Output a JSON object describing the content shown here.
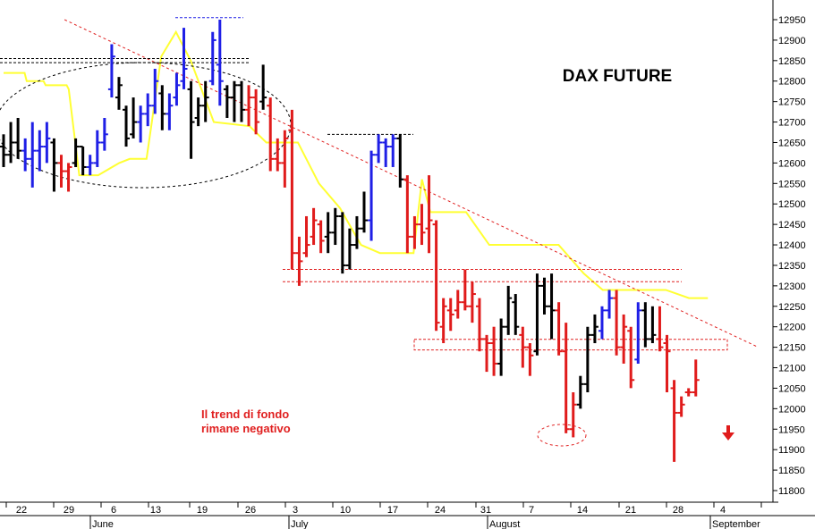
{
  "chart_data": {
    "type": "ohlc",
    "title": "DAX FUTURE",
    "annotation": {
      "lines": [
        "Il trend di fondo",
        "rimane negativo"
      ]
    },
    "y_axis": {
      "position": "right",
      "min": 11750,
      "max": 12975,
      "ticks": [
        11800,
        11850,
        11900,
        11950,
        12000,
        12050,
        12100,
        12150,
        12200,
        12250,
        12300,
        12350,
        12400,
        12450,
        12500,
        12550,
        12600,
        12650,
        12700,
        12750,
        12800,
        12850,
        12900,
        12950
      ]
    },
    "x_axis": {
      "day_ticks": [
        "22",
        "29",
        "6",
        "13",
        "19",
        "26",
        "3",
        "10",
        "17",
        "24",
        "31",
        "7",
        "14",
        "21",
        "28",
        "4"
      ],
      "month_labels": [
        "June",
        "July",
        "August",
        "September"
      ]
    },
    "colors": {
      "up": "#1f1fe6",
      "down": "#e01b1b",
      "neutral": "#000000",
      "moving_average": "#ffff33",
      "trendline": "#e02020",
      "levels": "#e02020"
    },
    "bars": [
      {
        "h": 12670,
        "l": 12590,
        "o": 12640,
        "c": 12620,
        "col": "k"
      },
      {
        "h": 12700,
        "l": 12600,
        "o": 12620,
        "c": 12650,
        "col": "k"
      },
      {
        "h": 12710,
        "l": 12610,
        "o": 12650,
        "c": 12630,
        "col": "k"
      },
      {
        "h": 12660,
        "l": 12580,
        "o": 12630,
        "c": 12610,
        "col": "b"
      },
      {
        "h": 12700,
        "l": 12540,
        "o": 12610,
        "c": 12630,
        "col": "b"
      },
      {
        "h": 12680,
        "l": 12580,
        "o": 12630,
        "c": 12640,
        "col": "b"
      },
      {
        "h": 12700,
        "l": 12600,
        "o": 12640,
        "c": 12660,
        "col": "b"
      },
      {
        "h": 12660,
        "l": 12530,
        "o": 12650,
        "c": 12600,
        "col": "k"
      },
      {
        "h": 12620,
        "l": 12540,
        "o": 12600,
        "c": 12580,
        "col": "r"
      },
      {
        "h": 12600,
        "l": 12530,
        "o": 12580,
        "c": 12590,
        "col": "r"
      },
      {
        "h": 12660,
        "l": 12590,
        "o": 12600,
        "c": 12640,
        "col": "k"
      },
      {
        "h": 12640,
        "l": 12570,
        "o": 12640,
        "c": 12590,
        "col": "k"
      },
      {
        "h": 12620,
        "l": 12570,
        "o": 12590,
        "c": 12600,
        "col": "b"
      },
      {
        "h": 12680,
        "l": 12590,
        "o": 12600,
        "c": 12650,
        "col": "b"
      },
      {
        "h": 12710,
        "l": 12630,
        "o": 12650,
        "c": 12670,
        "col": "b"
      },
      {
        "h": 12890,
        "l": 12760,
        "o": 12780,
        "c": 12860,
        "col": "b"
      },
      {
        "h": 12810,
        "l": 12730,
        "o": 12760,
        "c": 12790,
        "col": "k"
      },
      {
        "h": 12740,
        "l": 12640,
        "o": 12730,
        "c": 12660,
        "col": "k"
      },
      {
        "h": 12760,
        "l": 12660,
        "o": 12670,
        "c": 12700,
        "col": "k"
      },
      {
        "h": 12740,
        "l": 12650,
        "o": 12700,
        "c": 12720,
        "col": "b"
      },
      {
        "h": 12770,
        "l": 12690,
        "o": 12720,
        "c": 12740,
        "col": "b"
      },
      {
        "h": 12830,
        "l": 12720,
        "o": 12740,
        "c": 12800,
        "col": "b"
      },
      {
        "h": 12790,
        "l": 12680,
        "o": 12770,
        "c": 12720,
        "col": "k"
      },
      {
        "h": 12770,
        "l": 12680,
        "o": 12720,
        "c": 12740,
        "col": "b"
      },
      {
        "h": 12820,
        "l": 12740,
        "o": 12760,
        "c": 12790,
        "col": "b"
      },
      {
        "h": 12930,
        "l": 12780,
        "o": 12800,
        "c": 12830,
        "col": "b"
      },
      {
        "h": 12800,
        "l": 12610,
        "o": 12780,
        "c": 12700,
        "col": "k"
      },
      {
        "h": 12760,
        "l": 12690,
        "o": 12710,
        "c": 12740,
        "col": "k"
      },
      {
        "h": 12800,
        "l": 12700,
        "o": 12740,
        "c": 12760,
        "col": "k"
      },
      {
        "h": 12920,
        "l": 12790,
        "o": 12800,
        "c": 12900,
        "col": "b"
      },
      {
        "h": 12950,
        "l": 12740,
        "o": 12840,
        "c": 12800,
        "col": "b"
      },
      {
        "h": 12790,
        "l": 12710,
        "o": 12780,
        "c": 12760,
        "col": "k"
      },
      {
        "h": 12800,
        "l": 12700,
        "o": 12760,
        "c": 12790,
        "col": "k"
      },
      {
        "h": 12800,
        "l": 12700,
        "o": 12790,
        "c": 12730,
        "col": "k"
      },
      {
        "h": 12790,
        "l": 12690,
        "o": 12730,
        "c": 12760,
        "col": "r"
      },
      {
        "h": 12780,
        "l": 12670,
        "o": 12760,
        "c": 12700,
        "col": "r"
      },
      {
        "h": 12840,
        "l": 12730,
        "o": 12750,
        "c": 12760,
        "col": "k"
      },
      {
        "h": 12760,
        "l": 12580,
        "o": 12740,
        "c": 12610,
        "col": "r"
      },
      {
        "h": 12660,
        "l": 12580,
        "o": 12610,
        "c": 12600,
        "col": "r"
      },
      {
        "h": 12680,
        "l": 12540,
        "o": 12600,
        "c": 12660,
        "col": "r"
      },
      {
        "h": 12730,
        "l": 12340,
        "o": 12680,
        "c": 12380,
        "col": "r"
      },
      {
        "h": 12420,
        "l": 12300,
        "o": 12380,
        "c": 12360,
        "col": "r"
      },
      {
        "h": 12470,
        "l": 12370,
        "o": 12380,
        "c": 12400,
        "col": "r"
      },
      {
        "h": 12490,
        "l": 12400,
        "o": 12420,
        "c": 12460,
        "col": "r"
      },
      {
        "h": 12460,
        "l": 12380,
        "o": 12450,
        "c": 12410,
        "col": "r"
      },
      {
        "h": 12480,
        "l": 12380,
        "o": 12420,
        "c": 12430,
        "col": "k"
      },
      {
        "h": 12490,
        "l": 12400,
        "o": 12430,
        "c": 12470,
        "col": "k"
      },
      {
        "h": 12480,
        "l": 12330,
        "o": 12470,
        "c": 12350,
        "col": "k"
      },
      {
        "h": 12440,
        "l": 12340,
        "o": 12350,
        "c": 12400,
        "col": "k"
      },
      {
        "h": 12470,
        "l": 12390,
        "o": 12400,
        "c": 12440,
        "col": "k"
      },
      {
        "h": 12530,
        "l": 12430,
        "o": 12440,
        "c": 12460,
        "col": "k"
      },
      {
        "h": 12630,
        "l": 12410,
        "o": 12460,
        "c": 12620,
        "col": "b"
      },
      {
        "h": 12670,
        "l": 12600,
        "o": 12620,
        "c": 12650,
        "col": "b"
      },
      {
        "h": 12660,
        "l": 12590,
        "o": 12650,
        "c": 12640,
        "col": "b"
      },
      {
        "h": 12670,
        "l": 12590,
        "o": 12640,
        "c": 12660,
        "col": "b"
      },
      {
        "h": 12670,
        "l": 12540,
        "o": 12660,
        "c": 12560,
        "col": "k"
      },
      {
        "h": 12570,
        "l": 12380,
        "o": 12560,
        "c": 12420,
        "col": "r"
      },
      {
        "h": 12470,
        "l": 12390,
        "o": 12420,
        "c": 12450,
        "col": "r"
      },
      {
        "h": 12500,
        "l": 12400,
        "o": 12450,
        "c": 12430,
        "col": "r"
      },
      {
        "h": 12570,
        "l": 12380,
        "o": 12440,
        "c": 12460,
        "col": "r"
      },
      {
        "h": 12460,
        "l": 12190,
        "o": 12450,
        "c": 12210,
        "col": "r"
      },
      {
        "h": 12270,
        "l": 12160,
        "o": 12200,
        "c": 12250,
        "col": "r"
      },
      {
        "h": 12270,
        "l": 12190,
        "o": 12240,
        "c": 12230,
        "col": "r"
      },
      {
        "h": 12290,
        "l": 12220,
        "o": 12240,
        "c": 12260,
        "col": "r"
      },
      {
        "h": 12340,
        "l": 12240,
        "o": 12260,
        "c": 12250,
        "col": "r"
      },
      {
        "h": 12310,
        "l": 12210,
        "o": 12250,
        "c": 12280,
        "col": "r"
      },
      {
        "h": 12270,
        "l": 12140,
        "o": 12250,
        "c": 12170,
        "col": "r"
      },
      {
        "h": 12180,
        "l": 12090,
        "o": 12170,
        "c": 12160,
        "col": "r"
      },
      {
        "h": 12200,
        "l": 12080,
        "o": 12160,
        "c": 12110,
        "col": "r"
      },
      {
        "h": 12220,
        "l": 12080,
        "o": 12110,
        "c": 12200,
        "col": "k"
      },
      {
        "h": 12300,
        "l": 12180,
        "o": 12200,
        "c": 12270,
        "col": "k"
      },
      {
        "h": 12280,
        "l": 12180,
        "o": 12260,
        "c": 12200,
        "col": "k"
      },
      {
        "h": 12200,
        "l": 12100,
        "o": 12180,
        "c": 12150,
        "col": "r"
      },
      {
        "h": 12160,
        "l": 12080,
        "o": 12150,
        "c": 12130,
        "col": "r"
      },
      {
        "h": 12330,
        "l": 12130,
        "o": 12140,
        "c": 12300,
        "col": "k"
      },
      {
        "h": 12320,
        "l": 12230,
        "o": 12300,
        "c": 12250,
        "col": "k"
      },
      {
        "h": 12330,
        "l": 12170,
        "o": 12250,
        "c": 12240,
        "col": "k"
      },
      {
        "h": 12260,
        "l": 12130,
        "o": 12240,
        "c": 12140,
        "col": "r"
      },
      {
        "h": 12210,
        "l": 11940,
        "o": 12140,
        "c": 11950,
        "col": "r"
      },
      {
        "h": 12040,
        "l": 11930,
        "o": 11950,
        "c": 12010,
        "col": "r"
      },
      {
        "h": 12080,
        "l": 12000,
        "o": 12010,
        "c": 12060,
        "col": "k"
      },
      {
        "h": 12200,
        "l": 12040,
        "o": 12060,
        "c": 12180,
        "col": "k"
      },
      {
        "h": 12230,
        "l": 12160,
        "o": 12180,
        "c": 12200,
        "col": "k"
      },
      {
        "h": 12250,
        "l": 12170,
        "o": 12190,
        "c": 12240,
        "col": "b"
      },
      {
        "h": 12290,
        "l": 12220,
        "o": 12240,
        "c": 12270,
        "col": "b"
      },
      {
        "h": 12290,
        "l": 12130,
        "o": 12270,
        "c": 12150,
        "col": "r"
      },
      {
        "h": 12230,
        "l": 12110,
        "o": 12150,
        "c": 12200,
        "col": "r"
      },
      {
        "h": 12200,
        "l": 12050,
        "o": 12190,
        "c": 12070,
        "col": "r"
      },
      {
        "h": 12260,
        "l": 12110,
        "o": 12120,
        "c": 12240,
        "col": "b"
      },
      {
        "h": 12260,
        "l": 12150,
        "o": 12240,
        "c": 12170,
        "col": "k"
      },
      {
        "h": 12250,
        "l": 12160,
        "o": 12170,
        "c": 12180,
        "col": "k"
      },
      {
        "h": 12250,
        "l": 12140,
        "o": 12170,
        "c": 12150,
        "col": "r"
      },
      {
        "h": 12180,
        "l": 12040,
        "o": 12160,
        "c": 12140,
        "col": "r"
      },
      {
        "h": 12070,
        "l": 11870,
        "o": 12050,
        "c": 11990,
        "col": "r"
      },
      {
        "h": 12030,
        "l": 11980,
        "o": 11990,
        "c": 12010,
        "col": "r"
      },
      {
        "h": 12050,
        "l": 12030,
        "o": 12040,
        "c": 12040,
        "col": "r"
      },
      {
        "h": 12120,
        "l": 12030,
        "o": 12040,
        "c": 12070,
        "col": "r"
      }
    ],
    "moving_average": [
      [
        0,
        12820
      ],
      [
        10,
        12820
      ],
      [
        11,
        12800
      ],
      [
        19,
        12800
      ],
      [
        20,
        12790
      ],
      [
        30,
        12790
      ],
      [
        31,
        12780
      ],
      [
        36,
        12570
      ],
      [
        45,
        12570
      ],
      [
        55,
        12600
      ],
      [
        60,
        12610
      ],
      [
        68,
        12610
      ],
      [
        75,
        12860
      ],
      [
        82,
        12920
      ],
      [
        89,
        12850
      ],
      [
        100,
        12700
      ],
      [
        117,
        12690
      ],
      [
        125,
        12650
      ],
      [
        140,
        12650
      ],
      [
        150,
        12550
      ],
      [
        160,
        12490
      ],
      [
        170,
        12400
      ],
      [
        179,
        12380
      ],
      [
        195,
        12380
      ],
      [
        199,
        12560
      ],
      [
        203,
        12480
      ],
      [
        220,
        12480
      ],
      [
        231,
        12400
      ],
      [
        250,
        12400
      ],
      [
        264,
        12400
      ],
      [
        276,
        12330
      ],
      [
        285,
        12290
      ],
      [
        310,
        12290
      ],
      [
        315,
        12290
      ],
      [
        326,
        12270
      ],
      [
        335,
        12270
      ]
    ],
    "trendline": {
      "from": [
        12950,
        29
      ],
      "to": [
        12150,
        359
      ]
    },
    "resistance_levels": [
      12340,
      12310
    ],
    "support_levels": [
      12165,
      12150
    ],
    "top_levels": [
      12855,
      12845
    ],
    "peak_marker": 12955,
    "local_high_marker": 12670
  }
}
